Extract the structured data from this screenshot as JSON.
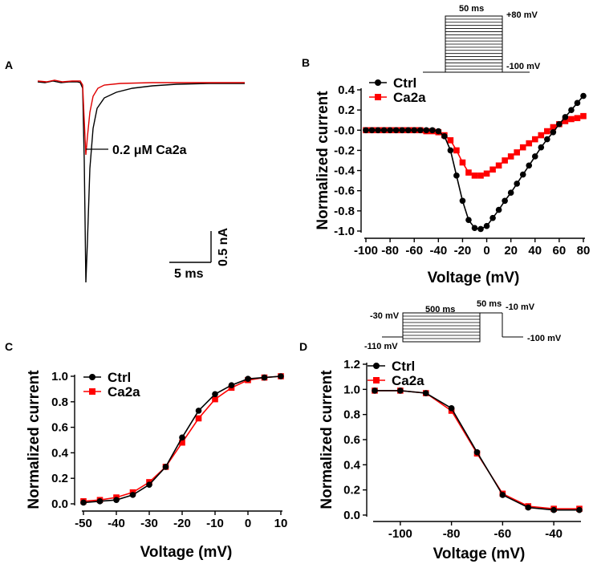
{
  "colors": {
    "ctrl": "#000000",
    "ca2a": "#ff0000"
  },
  "chart_data": [
    {
      "panel": "A",
      "type": "line",
      "title": "",
      "series": [
        {
          "name": "Ctrl",
          "color": "#000000",
          "peak_nA": -2.5,
          "peak_time_ms": 1.0
        },
        {
          "name": "Ca2a",
          "color": "#ff0000",
          "peak_nA": -0.92,
          "peak_time_ms": 0.8
        }
      ],
      "annotation": "0.2 μM Ca2a",
      "scale_bar": {
        "time_label": "5 ms",
        "current_label": "0.5 nA",
        "time_value_ms": 5,
        "current_value_nA": 0.5
      }
    },
    {
      "panel": "B",
      "type": "line",
      "xlabel": "Voltage (mV)",
      "ylabel": "Normalized current",
      "xlim": [
        -100,
        80
      ],
      "ylim": [
        -1.0,
        0.4
      ],
      "xticks": [
        -100,
        -80,
        -60,
        -40,
        -20,
        0,
        20,
        40,
        60,
        80
      ],
      "yticks": [
        -1.0,
        -0.8,
        -0.6,
        -0.4,
        -0.2,
        0.0,
        0.2,
        0.4
      ],
      "xtick_labels": [
        "-100",
        "-80",
        "-60",
        "-40",
        "-20",
        "0",
        "20",
        "40",
        "60",
        "80"
      ],
      "ytick_labels": [
        "-1.0",
        "-0.8",
        "-0.6",
        "-0.4",
        "-0.2",
        "-0.0",
        "0.2",
        "0.4"
      ],
      "legend": [
        "Ctrl",
        "Ca2a"
      ],
      "protocol": {
        "top_label": "50 ms",
        "high_label": "+80 mV",
        "low_label": "-100 mV"
      },
      "series": [
        {
          "name": "Ctrl",
          "marker": "circle",
          "x": [
            -100,
            -95,
            -90,
            -85,
            -80,
            -75,
            -70,
            -65,
            -60,
            -55,
            -50,
            -45,
            -40,
            -35,
            -30,
            -25,
            -20,
            -15,
            -10,
            -5,
            0,
            5,
            10,
            15,
            20,
            25,
            30,
            35,
            40,
            45,
            50,
            55,
            60,
            65,
            70,
            75,
            80
          ],
          "y": [
            0,
            0,
            0,
            0,
            0,
            0,
            0,
            0,
            0,
            0,
            0,
            0,
            -0.01,
            -0.06,
            -0.2,
            -0.45,
            -0.7,
            -0.89,
            -0.97,
            -0.98,
            -0.95,
            -0.87,
            -0.79,
            -0.7,
            -0.62,
            -0.53,
            -0.44,
            -0.35,
            -0.26,
            -0.17,
            -0.09,
            -0.02,
            0.06,
            0.13,
            0.2,
            0.27,
            0.34
          ]
        },
        {
          "name": "Ca2a",
          "marker": "square",
          "x": [
            -100,
            -95,
            -90,
            -85,
            -80,
            -75,
            -70,
            -65,
            -60,
            -55,
            -50,
            -45,
            -40,
            -35,
            -30,
            -25,
            -20,
            -15,
            -10,
            -5,
            0,
            5,
            10,
            15,
            20,
            25,
            30,
            35,
            40,
            45,
            50,
            55,
            60,
            65,
            70,
            75,
            80
          ],
          "y": [
            0,
            0,
            0,
            0,
            0,
            0,
            0,
            0,
            0,
            0,
            -0.01,
            -0.01,
            -0.02,
            -0.05,
            -0.1,
            -0.2,
            -0.32,
            -0.42,
            -0.45,
            -0.45,
            -0.43,
            -0.39,
            -0.35,
            -0.3,
            -0.26,
            -0.22,
            -0.17,
            -0.13,
            -0.09,
            -0.05,
            -0.01,
            0.03,
            0.06,
            0.09,
            0.11,
            0.12,
            0.14
          ]
        }
      ]
    },
    {
      "panel": "C",
      "type": "line",
      "xlabel": "Voltage (mV)",
      "ylabel": "Normalized current",
      "xlim": [
        -50,
        10
      ],
      "ylim": [
        0.0,
        1.0
      ],
      "xticks": [
        -50,
        -40,
        -30,
        -20,
        -10,
        0,
        10
      ],
      "yticks": [
        0.0,
        0.2,
        0.4,
        0.6,
        0.8,
        1.0
      ],
      "xtick_labels": [
        "-50",
        "-40",
        "-30",
        "-20",
        "-10",
        "0",
        "10"
      ],
      "ytick_labels": [
        "0.0",
        "0.2",
        "0.4",
        "0.6",
        "0.8",
        "1.0"
      ],
      "legend": [
        "Ctrl",
        "Ca2a"
      ],
      "series": [
        {
          "name": "Ctrl",
          "marker": "circle",
          "x": [
            -50,
            -45,
            -40,
            -35,
            -30,
            -25,
            -20,
            -15,
            -10,
            -5,
            0,
            5,
            10
          ],
          "y": [
            0.01,
            0.02,
            0.03,
            0.07,
            0.15,
            0.29,
            0.52,
            0.73,
            0.86,
            0.93,
            0.98,
            0.99,
            1.0
          ]
        },
        {
          "name": "Ca2a",
          "marker": "square",
          "x": [
            -50,
            -45,
            -40,
            -35,
            -30,
            -25,
            -20,
            -15,
            -10,
            -5,
            0,
            5,
            10
          ],
          "y": [
            0.02,
            0.03,
            0.05,
            0.09,
            0.17,
            0.29,
            0.48,
            0.67,
            0.82,
            0.91,
            0.97,
            0.99,
            1.0
          ]
        }
      ]
    },
    {
      "panel": "D",
      "type": "line",
      "xlabel": "Voltage (mV)",
      "ylabel": "Normalized current",
      "xlim": [
        -110,
        -30
      ],
      "ylim": [
        0.0,
        1.2
      ],
      "xticks": [
        -100,
        -80,
        -60,
        -40
      ],
      "yticks": [
        0.0,
        0.2,
        0.4,
        0.6,
        0.8,
        1.0,
        1.2
      ],
      "xtick_labels": [
        "-100",
        "-80",
        "-60",
        "-40"
      ],
      "ytick_labels": [
        "0.0",
        "0.2",
        "0.4",
        "0.6",
        "0.8",
        "1.0",
        "1.2"
      ],
      "legend": [
        "Ctrl",
        "Ca2a"
      ],
      "protocol": {
        "hold_label": "-110 mV",
        "cond_label": "-30 mV",
        "cond_time": "500 ms",
        "test_time": "50 ms",
        "test_label": "-10 mV",
        "end_label": "-100 mV"
      },
      "series": [
        {
          "name": "Ctrl",
          "marker": "circle",
          "x": [
            -110,
            -100,
            -90,
            -80,
            -70,
            -60,
            -50,
            -40,
            -30
          ],
          "y": [
            0.99,
            0.99,
            0.97,
            0.85,
            0.5,
            0.16,
            0.06,
            0.04,
            0.04
          ]
        },
        {
          "name": "Ca2a",
          "marker": "square",
          "x": [
            -110,
            -100,
            -90,
            -80,
            -70,
            -60,
            -50,
            -40,
            -30
          ],
          "y": [
            0.99,
            0.99,
            0.97,
            0.83,
            0.49,
            0.17,
            0.07,
            0.05,
            0.05
          ]
        }
      ]
    }
  ],
  "panels": {
    "A": {
      "letter": "A"
    },
    "B": {
      "letter": "B"
    },
    "C": {
      "letter": "C"
    },
    "D": {
      "letter": "D"
    }
  }
}
